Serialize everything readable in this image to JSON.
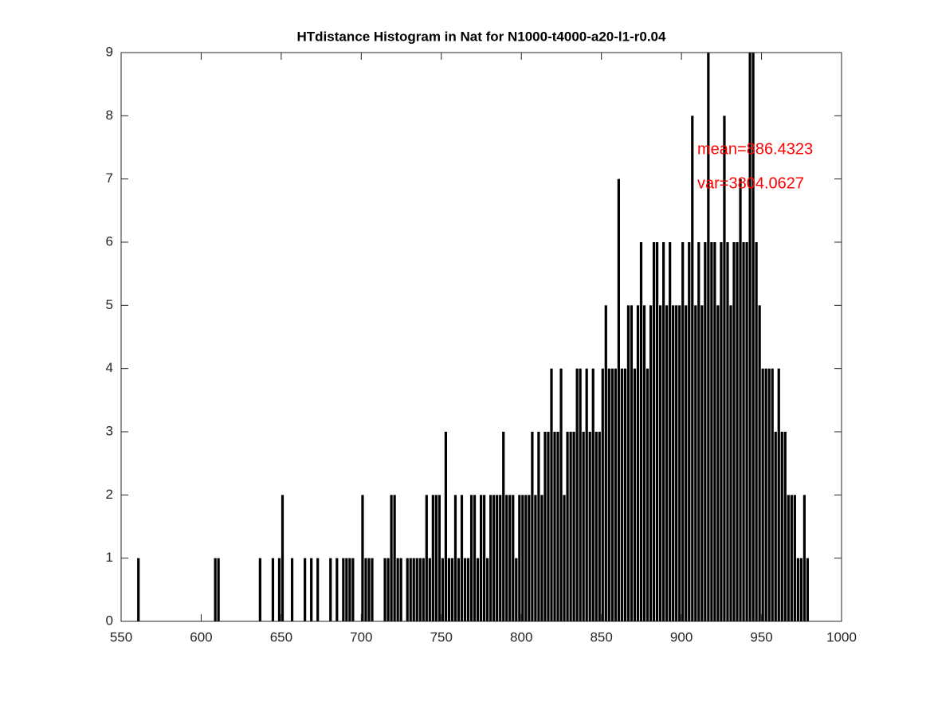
{
  "chart_data": {
    "type": "histogram",
    "title": "HTdistance Histogram in Nat for N1000-t4000-a20-l1-r0.04",
    "bins": [
      560,
      562,
      564,
      566,
      568,
      570,
      572,
      574,
      576,
      578,
      580,
      582,
      584,
      586,
      588,
      590,
      592,
      594,
      596,
      598,
      600,
      602,
      604,
      606,
      608,
      610,
      612,
      614,
      616,
      618,
      620,
      622,
      624,
      626,
      628,
      630,
      632,
      634,
      636,
      638,
      640,
      642,
      644,
      646,
      648,
      650,
      652,
      654,
      656,
      658,
      660,
      662,
      664,
      666,
      668,
      670,
      672,
      674,
      676,
      678,
      680,
      682,
      684,
      686,
      688,
      690,
      692,
      694,
      696,
      698,
      700,
      702,
      704,
      706,
      708,
      710,
      712,
      714,
      716,
      718,
      720,
      722,
      724,
      726,
      728,
      730,
      732,
      734,
      736,
      738,
      740,
      742,
      744,
      746,
      748,
      750,
      752,
      754,
      756,
      758,
      760,
      762,
      764,
      766,
      768,
      770,
      772,
      774,
      776,
      778,
      780,
      782,
      784,
      786,
      788,
      790,
      792,
      794,
      796,
      798,
      800,
      802,
      804,
      806,
      808,
      810,
      812,
      814,
      816,
      818,
      820,
      822,
      824,
      826,
      828,
      830,
      832,
      834,
      836,
      838,
      840,
      842,
      844,
      846,
      848,
      850,
      852,
      854,
      856,
      858,
      860,
      862,
      864,
      866,
      868,
      870,
      872,
      874,
      876,
      878,
      880,
      882,
      884,
      886,
      888,
      890,
      892,
      894,
      896,
      898,
      900,
      902,
      904,
      906,
      908,
      910,
      912,
      914,
      916,
      918,
      920,
      922,
      924,
      926,
      928,
      930,
      932,
      934,
      936,
      938,
      940,
      942,
      944,
      946,
      948,
      950,
      952,
      954,
      956,
      958,
      960,
      962,
      964,
      966,
      968,
      970,
      972,
      974,
      976,
      978,
      980
    ],
    "values": [
      1,
      0,
      0,
      0,
      0,
      0,
      0,
      0,
      0,
      0,
      0,
      0,
      0,
      0,
      0,
      0,
      0,
      0,
      0,
      0,
      0,
      0,
      0,
      0,
      1,
      1,
      0,
      0,
      0,
      0,
      0,
      0,
      0,
      0,
      0,
      0,
      0,
      0,
      1,
      0,
      0,
      0,
      1,
      0,
      1,
      2,
      0,
      0,
      1,
      0,
      0,
      0,
      1,
      0,
      1,
      0,
      1,
      0,
      0,
      0,
      1,
      0,
      1,
      0,
      1,
      1,
      1,
      1,
      0,
      0,
      2,
      1,
      1,
      1,
      0,
      0,
      0,
      1,
      1,
      2,
      2,
      1,
      1,
      0,
      1,
      1,
      1,
      1,
      1,
      1,
      2,
      1,
      2,
      2,
      2,
      1,
      3,
      1,
      1,
      2,
      1,
      2,
      1,
      1,
      2,
      2,
      1,
      2,
      2,
      1,
      2,
      2,
      2,
      2,
      3,
      2,
      2,
      2,
      1,
      2,
      2,
      2,
      2,
      3,
      2,
      3,
      2,
      3,
      3,
      4,
      3,
      3,
      4,
      2,
      3,
      3,
      3,
      4,
      4,
      3,
      4,
      3,
      4,
      3,
      3,
      4,
      5,
      4,
      4,
      4,
      7,
      4,
      4,
      5,
      5,
      4,
      5,
      6,
      5,
      4,
      5,
      6,
      6,
      5,
      6,
      5,
      6,
      5,
      5,
      5,
      6,
      5,
      6,
      8,
      5,
      6,
      5,
      6,
      9,
      6,
      6,
      5,
      6,
      8,
      6,
      5,
      6,
      6,
      7,
      6,
      6,
      9,
      9,
      6,
      5,
      4,
      4,
      4,
      4,
      3,
      4,
      3,
      3,
      2,
      2,
      2,
      1,
      1,
      2,
      1
    ],
    "color": "#000000",
    "annotations": [
      "mean=886.4323",
      "var=3804.0627"
    ],
    "annotation_color": "#ff0000",
    "xlim": [
      550,
      1000
    ],
    "xticks": [
      550,
      600,
      650,
      700,
      750,
      800,
      850,
      900,
      950,
      1000
    ],
    "ylim": [
      0,
      9
    ],
    "yticks": [
      0,
      1,
      2,
      3,
      4,
      5,
      6,
      7,
      8,
      9
    ]
  }
}
